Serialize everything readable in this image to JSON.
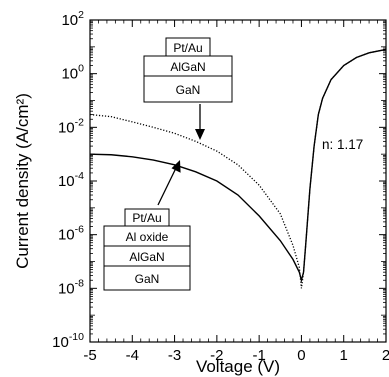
{
  "chart_data": {
    "type": "line",
    "xlabel": "Voltage (V)",
    "ylabel": "Current density (A/cm²)",
    "xlim": [
      -5,
      2
    ],
    "ylim": [
      1e-10,
      100
    ],
    "yscale": "log",
    "x_ticks": [
      "-5",
      "-4",
      "-3",
      "-2",
      "-1",
      "0",
      "1",
      "2"
    ],
    "y_ticks": [
      {
        "base": "10",
        "exp": "2"
      },
      {
        "base": "10",
        "exp": "0"
      },
      {
        "base": "10",
        "exp": "-2"
      },
      {
        "base": "10",
        "exp": "-4"
      },
      {
        "base": "10",
        "exp": "-6"
      },
      {
        "base": "10",
        "exp": "-8"
      },
      {
        "base": "10",
        "exp": "-10"
      }
    ],
    "grid": false,
    "series": [
      {
        "style": "dotted",
        "color": "#000000",
        "x": [
          -5.0,
          -4.5,
          -4.0,
          -3.5,
          -3.0,
          -2.5,
          -2.0,
          -1.5,
          -1.0,
          -0.5,
          -0.2,
          -0.05,
          0.0,
          0.05,
          0.1,
          0.2,
          0.3,
          0.4,
          0.5,
          0.7,
          1.0,
          1.3,
          1.6,
          2.0
        ],
        "y": [
          0.03,
          0.025,
          0.016,
          0.01,
          0.006,
          0.003,
          0.0013,
          0.0004,
          7e-05,
          6e-06,
          4e-07,
          6e-08,
          1e-08,
          4e-08,
          4e-07,
          5e-05,
          0.002,
          0.03,
          0.12,
          0.6,
          2,
          4,
          6,
          8
        ]
      },
      {
        "style": "solid",
        "color": "#000000",
        "x": [
          -5.0,
          -4.5,
          -4.0,
          -3.5,
          -3.0,
          -2.5,
          -2.0,
          -1.5,
          -1.0,
          -0.5,
          -0.2,
          -0.05,
          0.0,
          0.05,
          0.1,
          0.2,
          0.3,
          0.4,
          0.5,
          0.7,
          1.0,
          1.3,
          1.6,
          2.0
        ],
        "y": [
          0.001,
          0.00095,
          0.0008,
          0.0006,
          0.0004,
          0.00022,
          0.0001,
          3e-05,
          5e-06,
          6e-07,
          1.2e-07,
          4e-08,
          2e-08,
          4e-08,
          4e-07,
          5e-05,
          0.002,
          0.03,
          0.12,
          0.6,
          2,
          4,
          6,
          8
        ]
      }
    ],
    "annotations": {
      "ideality": "n: 1.17",
      "top_stack": [
        "Pt/Au",
        "AlGaN",
        "GaN"
      ],
      "bottom_stack": [
        "Pt/Au",
        "Al oxide",
        "AlGaN",
        "GaN"
      ]
    }
  }
}
